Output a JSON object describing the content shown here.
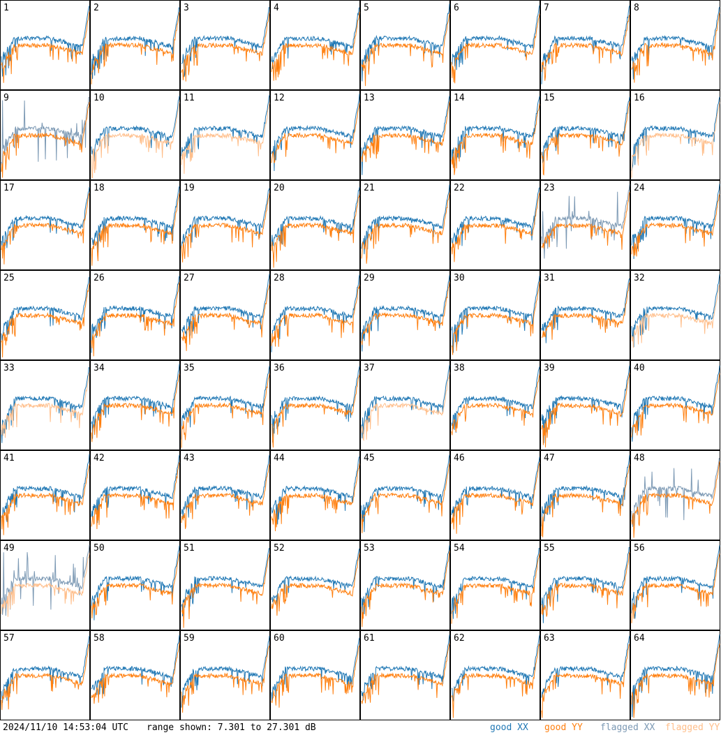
{
  "footer": {
    "timestamp": "2024/11/10 14:53:04 UTC",
    "range_text": "range shown: 7.301 to 27.301 dB"
  },
  "legend": {
    "good_xx": "good XX",
    "good_yy": "good YY",
    "flagged_xx": "flagged XX",
    "flagged_yy": "flagged YY"
  },
  "colors": {
    "good_xx": "#1f77b4",
    "good_yy": "#ff7f0e",
    "flagged_xx": "#7c99b4",
    "flagged_yy": "#ffbe8a"
  },
  "chart_data": {
    "type": "line",
    "layout": "8x8 small multiples",
    "range_db": [
      7.301,
      27.301
    ],
    "tiles": [
      {
        "id": "1",
        "xx": "good",
        "yy": "good"
      },
      {
        "id": "2",
        "xx": "good",
        "yy": "good"
      },
      {
        "id": "3",
        "xx": "good",
        "yy": "good"
      },
      {
        "id": "4",
        "xx": "good",
        "yy": "good"
      },
      {
        "id": "5",
        "xx": "good",
        "yy": "good"
      },
      {
        "id": "6",
        "xx": "good",
        "yy": "good"
      },
      {
        "id": "7",
        "xx": "good",
        "yy": "good"
      },
      {
        "id": "8",
        "xx": "good",
        "yy": "good"
      },
      {
        "id": "9",
        "xx": "flagged",
        "yy": "good"
      },
      {
        "id": "10",
        "xx": "good",
        "yy": "flagged"
      },
      {
        "id": "11",
        "xx": "good",
        "yy": "flagged"
      },
      {
        "id": "12",
        "xx": "good",
        "yy": "good"
      },
      {
        "id": "13",
        "xx": "good",
        "yy": "good"
      },
      {
        "id": "14",
        "xx": "good",
        "yy": "good"
      },
      {
        "id": "15",
        "xx": "good",
        "yy": "good"
      },
      {
        "id": "16",
        "xx": "good",
        "yy": "flagged"
      },
      {
        "id": "17",
        "xx": "good",
        "yy": "good"
      },
      {
        "id": "18",
        "xx": "good",
        "yy": "good"
      },
      {
        "id": "19",
        "xx": "good",
        "yy": "good"
      },
      {
        "id": "20",
        "xx": "good",
        "yy": "good"
      },
      {
        "id": "21",
        "xx": "good",
        "yy": "good"
      },
      {
        "id": "22",
        "xx": "good",
        "yy": "good"
      },
      {
        "id": "23",
        "xx": "flagged",
        "yy": "good"
      },
      {
        "id": "24",
        "xx": "good",
        "yy": "good"
      },
      {
        "id": "25",
        "xx": "good",
        "yy": "good"
      },
      {
        "id": "26",
        "xx": "good",
        "yy": "good"
      },
      {
        "id": "27",
        "xx": "good",
        "yy": "good"
      },
      {
        "id": "28",
        "xx": "good",
        "yy": "good"
      },
      {
        "id": "29",
        "xx": "good",
        "yy": "good"
      },
      {
        "id": "30",
        "xx": "good",
        "yy": "good"
      },
      {
        "id": "31",
        "xx": "good",
        "yy": "good"
      },
      {
        "id": "32",
        "xx": "good",
        "yy": "flagged"
      },
      {
        "id": "33",
        "xx": "good",
        "yy": "flagged"
      },
      {
        "id": "34",
        "xx": "good",
        "yy": "good"
      },
      {
        "id": "35",
        "xx": "good",
        "yy": "good"
      },
      {
        "id": "36",
        "xx": "good",
        "yy": "good"
      },
      {
        "id": "37",
        "xx": "good",
        "yy": "flagged"
      },
      {
        "id": "38",
        "xx": "good",
        "yy": "good"
      },
      {
        "id": "39",
        "xx": "good",
        "yy": "good"
      },
      {
        "id": "40",
        "xx": "good",
        "yy": "good"
      },
      {
        "id": "41",
        "xx": "good",
        "yy": "good"
      },
      {
        "id": "42",
        "xx": "good",
        "yy": "good"
      },
      {
        "id": "43",
        "xx": "good",
        "yy": "good"
      },
      {
        "id": "44",
        "xx": "good",
        "yy": "good"
      },
      {
        "id": "45",
        "xx": "good",
        "yy": "good"
      },
      {
        "id": "46",
        "xx": "good",
        "yy": "good"
      },
      {
        "id": "47",
        "xx": "good",
        "yy": "good"
      },
      {
        "id": "48",
        "xx": "flagged",
        "yy": "good"
      },
      {
        "id": "49",
        "xx": "flagged",
        "yy": "flagged"
      },
      {
        "id": "50",
        "xx": "good",
        "yy": "good"
      },
      {
        "id": "51",
        "xx": "good",
        "yy": "good"
      },
      {
        "id": "52",
        "xx": "good",
        "yy": "good"
      },
      {
        "id": "53",
        "xx": "good",
        "yy": "good"
      },
      {
        "id": "54",
        "xx": "good",
        "yy": "good"
      },
      {
        "id": "55",
        "xx": "good",
        "yy": "good"
      },
      {
        "id": "56",
        "xx": "good",
        "yy": "good"
      },
      {
        "id": "57",
        "xx": "good",
        "yy": "good"
      },
      {
        "id": "58",
        "xx": "good",
        "yy": "good"
      },
      {
        "id": "59",
        "xx": "good",
        "yy": "good"
      },
      {
        "id": "60",
        "xx": "good",
        "yy": "good"
      },
      {
        "id": "61",
        "xx": "good",
        "yy": "good"
      },
      {
        "id": "62",
        "xx": "good",
        "yy": "good"
      },
      {
        "id": "63",
        "xx": "good",
        "yy": "good"
      },
      {
        "id": "64",
        "xx": "good",
        "yy": "good"
      }
    ]
  }
}
